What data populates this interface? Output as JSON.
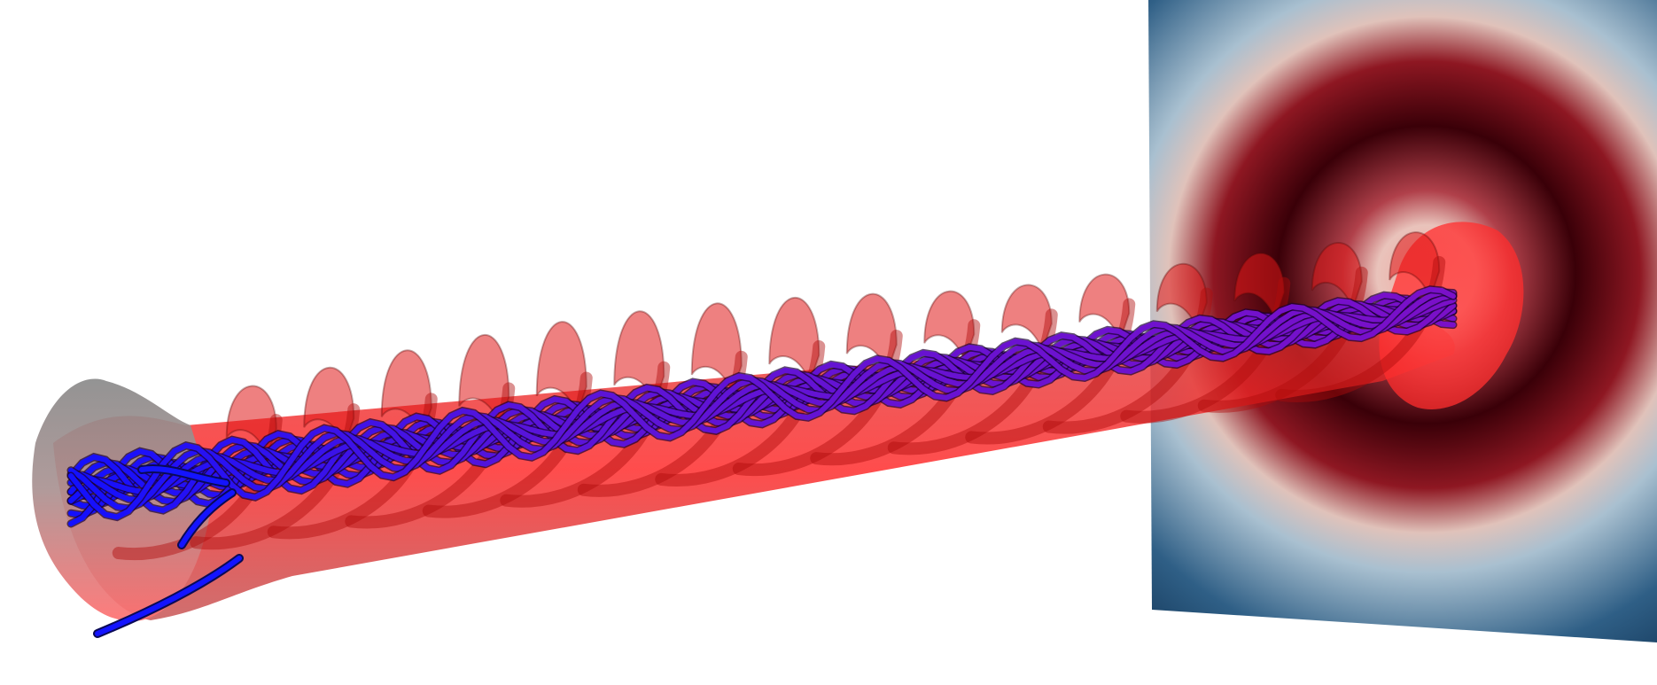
{
  "scene": {
    "objects": [
      {
        "name": "cross-section-plane",
        "kind": "slice",
        "colormap": "diverging-blue-red",
        "visible": true
      },
      {
        "name": "helical-isosurface",
        "kind": "surface",
        "color": "#ff1a1a",
        "turns": 16
      },
      {
        "name": "field-line-tubes",
        "kind": "streamtubes",
        "count": 12,
        "color_start": "#1010ff",
        "color_end": "#7a10c8"
      }
    ],
    "colors": {
      "background": "#ffffff",
      "plane_edge": "#0b2a4a",
      "plane_mid": "#9fb6c8",
      "ring_light": "#e8c9bd",
      "ring_dark": "#3a0008",
      "surface": "#ff1a1a",
      "tube_blue": "#1010ff",
      "tube_purple": "#7a10c8"
    }
  }
}
